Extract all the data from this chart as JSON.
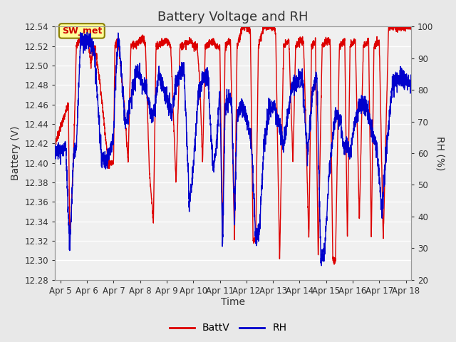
{
  "title": "Battery Voltage and RH",
  "xlabel": "Time",
  "ylabel_left": "Battery (V)",
  "ylabel_right": "RH (%)",
  "annotation_text": "SW_met",
  "annotation_facecolor": "#FFFF99",
  "annotation_edgecolor": "#8B8000",
  "annotation_textcolor": "#CC0000",
  "batt_color": "#DD0000",
  "rh_color": "#0000CC",
  "batt_label": "BattV",
  "rh_label": "RH",
  "ylim_left": [
    12.28,
    12.54
  ],
  "ylim_right": [
    20,
    100
  ],
  "yticks_left": [
    12.28,
    12.3,
    12.32,
    12.34,
    12.36,
    12.38,
    12.4,
    12.42,
    12.44,
    12.46,
    12.48,
    12.5,
    12.52,
    12.54
  ],
  "yticks_right": [
    20,
    30,
    40,
    50,
    60,
    70,
    80,
    90,
    100
  ],
  "fig_background": "#E8E8E8",
  "plot_background": "#F0F0F0",
  "grid_color": "#FFFFFF",
  "title_fontsize": 13,
  "axis_label_fontsize": 10,
  "tick_fontsize": 8.5,
  "legend_fontsize": 10,
  "x_start": 4.8,
  "x_end": 18.2,
  "xtick_positions": [
    5,
    6,
    7,
    8,
    9,
    10,
    11,
    12,
    13,
    14,
    15,
    16,
    17,
    18
  ],
  "xtick_labels": [
    "Apr 5",
    "Apr 6",
    "Apr 7",
    "Apr 8",
    "Apr 9",
    "Apr 10",
    "Apr 11",
    "Apr 12",
    "Apr 13",
    "Apr 14",
    "Apr 15",
    "Apr 16",
    "Apr 17",
    "Apr 18"
  ]
}
